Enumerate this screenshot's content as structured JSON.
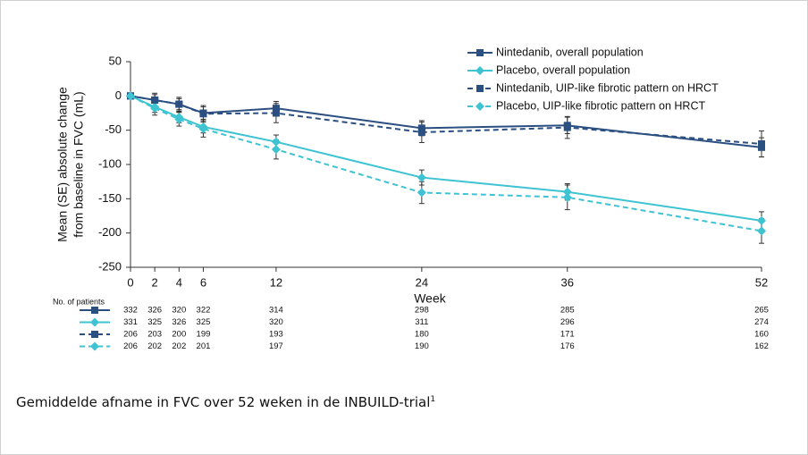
{
  "chart_data": {
    "type": "line",
    "ylabel": [
      "Mean (SE) absolute change",
      "from baseline in FVC (mL)"
    ],
    "xlabel": "Week",
    "x": [
      0,
      2,
      4,
      6,
      12,
      24,
      36,
      52
    ],
    "xlim": [
      0,
      52
    ],
    "xticks": [
      0,
      2,
      4,
      6,
      12,
      24,
      36,
      52
    ],
    "ylim": [
      -250,
      50
    ],
    "yticks": [
      50,
      0,
      -50,
      -100,
      -150,
      -200,
      -250
    ],
    "series": [
      {
        "name": "Nintedanib, overall population",
        "color": "#2b4f80",
        "marker": "square",
        "linestyle": "solid",
        "values": [
          0,
          -6,
          -12,
          -25,
          -18,
          -47,
          -43,
          -75
        ],
        "errors": [
          0,
          8,
          8,
          9,
          10,
          11,
          12,
          14
        ]
      },
      {
        "name": "Placebo, overall population",
        "color": "#3ec3d3",
        "marker": "diamond",
        "linestyle": "solid",
        "values": [
          0,
          -16,
          -31,
          -45,
          -67,
          -119,
          -140,
          -182
        ],
        "errors": [
          0,
          8,
          8,
          9,
          10,
          11,
          12,
          13
        ]
      },
      {
        "name": "Nintedanib, UIP-like fibrotic pattern on HRCT",
        "color": "#2b4f80",
        "marker": "square",
        "linestyle": "dashed",
        "values": [
          0,
          -6,
          -12,
          -26,
          -25,
          -53,
          -46,
          -70
        ],
        "errors": [
          0,
          10,
          10,
          12,
          14,
          15,
          16,
          19
        ]
      },
      {
        "name": "Placebo, UIP-like fibrotic pattern on HRCT",
        "color": "#3ec3d3",
        "marker": "diamond",
        "linestyle": "dashed",
        "values": [
          0,
          -18,
          -34,
          -48,
          -78,
          -141,
          -148,
          -197
        ],
        "errors": [
          0,
          10,
          10,
          12,
          14,
          16,
          18,
          18
        ]
      }
    ],
    "patients": {
      "label": "No. of patients",
      "rows": [
        [
          332,
          326,
          320,
          322,
          314,
          298,
          285,
          265
        ],
        [
          331,
          325,
          326,
          325,
          320,
          311,
          296,
          274
        ],
        [
          206,
          203,
          200,
          199,
          193,
          180,
          171,
          160
        ],
        [
          206,
          202,
          202,
          201,
          197,
          190,
          176,
          162
        ]
      ]
    }
  },
  "caption": {
    "text": "Gemiddelde afname in FVC over 52 weken in de INBUILD-trial",
    "superscript": "1"
  }
}
